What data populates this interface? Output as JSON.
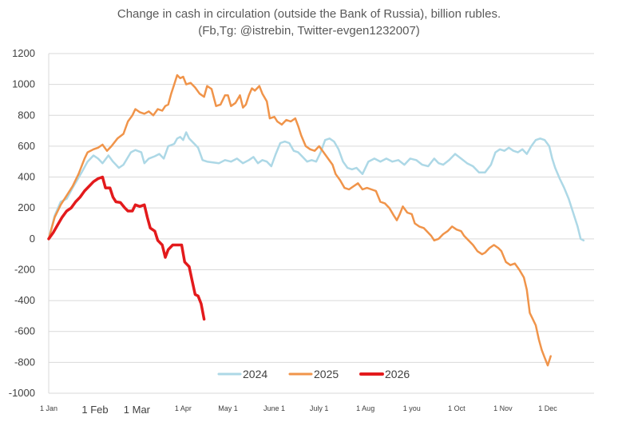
{
  "chart_data": {
    "type": "line",
    "title": "Change in cash in circulation (outside the Bank of Russia), billion rubles.",
    "subtitle": "(Fb,Tg: @istrebin, Twitter-evgen1232007)",
    "xlabel": "",
    "ylabel": "",
    "ylim": [
      -1000,
      1200
    ],
    "y_ticks": [
      "1200",
      "1000",
      "800",
      "600",
      "400",
      "200",
      "0",
      "-200",
      "-400",
      "-600",
      "-800",
      "-1000"
    ],
    "x_ticks": [
      {
        "day": 0,
        "label": "1 Jan",
        "size": "small"
      },
      {
        "day": 31,
        "label": "1 Feb",
        "size": "big"
      },
      {
        "day": 59,
        "label": "1 Mar",
        "size": "big"
      },
      {
        "day": 90,
        "label": "1 Apr",
        "size": "small"
      },
      {
        "day": 120,
        "label": "May 1",
        "size": "small"
      },
      {
        "day": 151,
        "label": "June 1",
        "size": "small"
      },
      {
        "day": 181,
        "label": "July 1",
        "size": "small"
      },
      {
        "day": 212,
        "label": "1 Aug",
        "size": "small"
      },
      {
        "day": 243,
        "label": "1 you",
        "size": "small"
      },
      {
        "day": 273,
        "label": "1 Oct",
        "size": "small"
      },
      {
        "day": 304,
        "label": "1 Nov",
        "size": "small"
      },
      {
        "day": 334,
        "label": "1 Dec",
        "size": "small"
      }
    ],
    "x_range_days": [
      0,
      365
    ],
    "grid": true,
    "legend_position": "bottom-center",
    "series": [
      {
        "name": "2024",
        "color": "#ADD8E6",
        "points": [
          [
            0,
            0
          ],
          [
            4,
            150
          ],
          [
            8,
            240
          ],
          [
            12,
            260
          ],
          [
            16,
            330
          ],
          [
            22,
            430
          ],
          [
            26,
            500
          ],
          [
            30,
            540
          ],
          [
            33,
            520
          ],
          [
            36,
            490
          ],
          [
            40,
            540
          ],
          [
            43,
            500
          ],
          [
            47,
            460
          ],
          [
            50,
            480
          ],
          [
            55,
            560
          ],
          [
            58,
            575
          ],
          [
            62,
            560
          ],
          [
            64,
            490
          ],
          [
            67,
            520
          ],
          [
            71,
            535
          ],
          [
            74,
            550
          ],
          [
            77,
            520
          ],
          [
            80,
            600
          ],
          [
            84,
            615
          ],
          [
            86,
            650
          ],
          [
            88,
            660
          ],
          [
            90,
            640
          ],
          [
            92,
            690
          ],
          [
            94,
            650
          ],
          [
            97,
            620
          ],
          [
            100,
            590
          ],
          [
            103,
            510
          ],
          [
            106,
            500
          ],
          [
            110,
            495
          ],
          [
            114,
            490
          ],
          [
            118,
            510
          ],
          [
            122,
            500
          ],
          [
            126,
            520
          ],
          [
            130,
            490
          ],
          [
            134,
            510
          ],
          [
            137,
            530
          ],
          [
            140,
            490
          ],
          [
            143,
            510
          ],
          [
            146,
            500
          ],
          [
            149,
            470
          ],
          [
            152,
            550
          ],
          [
            155,
            620
          ],
          [
            158,
            630
          ],
          [
            161,
            620
          ],
          [
            164,
            570
          ],
          [
            167,
            560
          ],
          [
            170,
            530
          ],
          [
            173,
            500
          ],
          [
            176,
            510
          ],
          [
            179,
            500
          ],
          [
            182,
            560
          ],
          [
            185,
            640
          ],
          [
            188,
            650
          ],
          [
            191,
            630
          ],
          [
            194,
            580
          ],
          [
            197,
            500
          ],
          [
            200,
            460
          ],
          [
            203,
            450
          ],
          [
            206,
            460
          ],
          [
            210,
            420
          ],
          [
            214,
            500
          ],
          [
            218,
            520
          ],
          [
            222,
            500
          ],
          [
            226,
            520
          ],
          [
            230,
            500
          ],
          [
            234,
            510
          ],
          [
            238,
            480
          ],
          [
            242,
            520
          ],
          [
            246,
            510
          ],
          [
            250,
            480
          ],
          [
            254,
            470
          ],
          [
            258,
            520
          ],
          [
            261,
            490
          ],
          [
            264,
            480
          ],
          [
            268,
            510
          ],
          [
            272,
            550
          ],
          [
            276,
            520
          ],
          [
            280,
            490
          ],
          [
            284,
            470
          ],
          [
            288,
            430
          ],
          [
            292,
            430
          ],
          [
            296,
            480
          ],
          [
            299,
            560
          ],
          [
            302,
            580
          ],
          [
            305,
            570
          ],
          [
            308,
            590
          ],
          [
            311,
            570
          ],
          [
            314,
            560
          ],
          [
            317,
            580
          ],
          [
            320,
            550
          ],
          [
            323,
            600
          ],
          [
            326,
            640
          ],
          [
            329,
            650
          ],
          [
            332,
            640
          ],
          [
            335,
            600
          ],
          [
            337,
            520
          ],
          [
            339,
            460
          ],
          [
            342,
            390
          ],
          [
            345,
            330
          ],
          [
            348,
            260
          ],
          [
            351,
            170
          ],
          [
            354,
            80
          ],
          [
            356,
            0
          ],
          [
            358,
            -10
          ]
        ]
      },
      {
        "name": "2025",
        "color": "#F0944A",
        "points": [
          [
            0,
            0
          ],
          [
            4,
            140
          ],
          [
            8,
            220
          ],
          [
            12,
            280
          ],
          [
            16,
            340
          ],
          [
            20,
            420
          ],
          [
            24,
            520
          ],
          [
            26,
            560
          ],
          [
            30,
            580
          ],
          [
            33,
            590
          ],
          [
            36,
            610
          ],
          [
            39,
            570
          ],
          [
            42,
            600
          ],
          [
            46,
            650
          ],
          [
            50,
            680
          ],
          [
            53,
            760
          ],
          [
            56,
            800
          ],
          [
            58,
            840
          ],
          [
            61,
            820
          ],
          [
            64,
            810
          ],
          [
            67,
            825
          ],
          [
            70,
            800
          ],
          [
            73,
            840
          ],
          [
            76,
            830
          ],
          [
            78,
            860
          ],
          [
            80,
            870
          ],
          [
            82,
            940
          ],
          [
            84,
            1000
          ],
          [
            86,
            1060
          ],
          [
            88,
            1040
          ],
          [
            90,
            1050
          ],
          [
            92,
            1000
          ],
          [
            95,
            1010
          ],
          [
            98,
            980
          ],
          [
            101,
            940
          ],
          [
            104,
            920
          ],
          [
            106,
            990
          ],
          [
            109,
            970
          ],
          [
            112,
            860
          ],
          [
            115,
            870
          ],
          [
            118,
            930
          ],
          [
            120,
            930
          ],
          [
            122,
            860
          ],
          [
            125,
            880
          ],
          [
            128,
            930
          ],
          [
            130,
            850
          ],
          [
            132,
            870
          ],
          [
            134,
            930
          ],
          [
            136,
            975
          ],
          [
            138,
            960
          ],
          [
            141,
            990
          ],
          [
            143,
            940
          ],
          [
            146,
            890
          ],
          [
            148,
            780
          ],
          [
            151,
            790
          ],
          [
            153,
            760
          ],
          [
            156,
            740
          ],
          [
            159,
            770
          ],
          [
            162,
            760
          ],
          [
            165,
            780
          ],
          [
            167,
            730
          ],
          [
            169,
            670
          ],
          [
            172,
            600
          ],
          [
            175,
            580
          ],
          [
            178,
            570
          ],
          [
            181,
            600
          ],
          [
            184,
            560
          ],
          [
            187,
            520
          ],
          [
            190,
            480
          ],
          [
            192,
            420
          ],
          [
            195,
            380
          ],
          [
            198,
            330
          ],
          [
            201,
            320
          ],
          [
            204,
            340
          ],
          [
            207,
            360
          ],
          [
            210,
            320
          ],
          [
            213,
            330
          ],
          [
            216,
            320
          ],
          [
            219,
            310
          ],
          [
            222,
            240
          ],
          [
            225,
            230
          ],
          [
            228,
            200
          ],
          [
            231,
            150
          ],
          [
            233,
            120
          ],
          [
            235,
            160
          ],
          [
            237,
            210
          ],
          [
            240,
            170
          ],
          [
            243,
            160
          ],
          [
            245,
            100
          ],
          [
            248,
            80
          ],
          [
            251,
            70
          ],
          [
            254,
            40
          ],
          [
            256,
            20
          ],
          [
            258,
            -10
          ],
          [
            261,
            0
          ],
          [
            264,
            30
          ],
          [
            267,
            50
          ],
          [
            270,
            80
          ],
          [
            273,
            60
          ],
          [
            276,
            50
          ],
          [
            278,
            20
          ],
          [
            281,
            -10
          ],
          [
            284,
            -40
          ],
          [
            287,
            -80
          ],
          [
            290,
            -100
          ],
          [
            292,
            -90
          ],
          [
            295,
            -60
          ],
          [
            298,
            -40
          ],
          [
            301,
            -60
          ],
          [
            303,
            -80
          ],
          [
            306,
            -150
          ],
          [
            309,
            -170
          ],
          [
            312,
            -160
          ],
          [
            315,
            -200
          ],
          [
            318,
            -250
          ],
          [
            320,
            -330
          ],
          [
            322,
            -480
          ],
          [
            324,
            -520
          ],
          [
            326,
            -560
          ],
          [
            328,
            -650
          ],
          [
            330,
            -720
          ],
          [
            332,
            -770
          ],
          [
            334,
            -820
          ],
          [
            336,
            -760
          ]
        ]
      },
      {
        "name": "2026",
        "color": "#E31A1C",
        "points": [
          [
            0,
            0
          ],
          [
            3,
            40
          ],
          [
            6,
            90
          ],
          [
            9,
            140
          ],
          [
            12,
            180
          ],
          [
            15,
            200
          ],
          [
            18,
            240
          ],
          [
            21,
            270
          ],
          [
            24,
            310
          ],
          [
            27,
            340
          ],
          [
            30,
            370
          ],
          [
            33,
            390
          ],
          [
            36,
            400
          ],
          [
            38,
            330
          ],
          [
            41,
            330
          ],
          [
            43,
            270
          ],
          [
            45,
            240
          ],
          [
            48,
            235
          ],
          [
            51,
            200
          ],
          [
            53,
            180
          ],
          [
            56,
            180
          ],
          [
            58,
            220
          ],
          [
            61,
            210
          ],
          [
            64,
            220
          ],
          [
            66,
            140
          ],
          [
            68,
            70
          ],
          [
            71,
            50
          ],
          [
            73,
            -10
          ],
          [
            76,
            -40
          ],
          [
            78,
            -120
          ],
          [
            80,
            -70
          ],
          [
            83,
            -40
          ],
          [
            86,
            -40
          ],
          [
            89,
            -40
          ],
          [
            91,
            -150
          ],
          [
            94,
            -180
          ],
          [
            96,
            -270
          ],
          [
            98,
            -360
          ],
          [
            100,
            -370
          ],
          [
            102,
            -420
          ],
          [
            104,
            -520
          ]
        ]
      }
    ]
  }
}
